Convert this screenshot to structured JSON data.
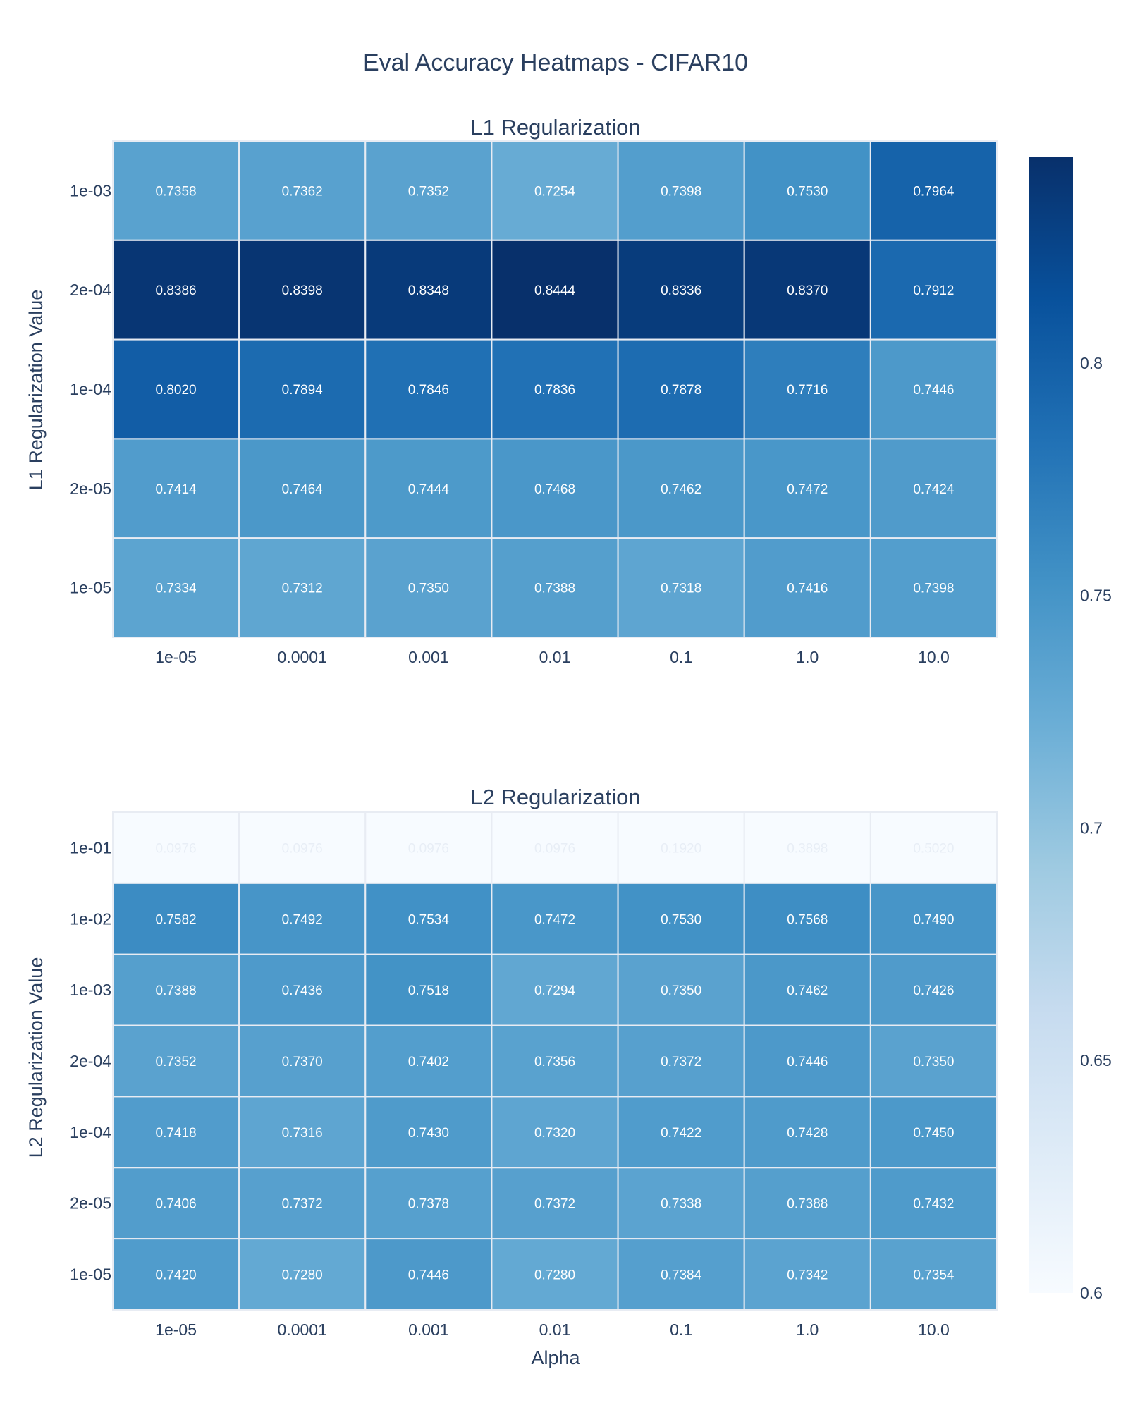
{
  "title": "Eval Accuracy Heatmaps - CIFAR10",
  "chart_data": {
    "type": "heatmap",
    "title": "Eval Accuracy Heatmaps - CIFAR10",
    "colorscale": "Blues",
    "colorbar": {
      "zmin": 0.6,
      "zmax": 0.8444,
      "ticks": [
        0.6,
        0.65,
        0.7,
        0.75,
        0.8
      ],
      "tick_labels": [
        "0.6",
        "0.65",
        "0.7",
        "0.75",
        "0.8"
      ]
    },
    "panels": [
      {
        "title": "L1 Regularization",
        "xlabel": "",
        "ylabel": "L1 Regularization Value",
        "x": [
          "1e-05",
          "0.0001",
          "0.001",
          "0.01",
          "0.1",
          "1.0",
          "10.0"
        ],
        "y": [
          "1e-03",
          "2e-04",
          "1e-04",
          "2e-05",
          "1e-05"
        ],
        "z": [
          [
            0.7358,
            0.7362,
            0.7352,
            0.7254,
            0.7398,
            0.753,
            0.7964
          ],
          [
            0.8386,
            0.8398,
            0.8348,
            0.8444,
            0.8336,
            0.837,
            0.7912
          ],
          [
            0.802,
            0.7894,
            0.7846,
            0.7836,
            0.7878,
            0.7716,
            0.7446
          ],
          [
            0.7414,
            0.7464,
            0.7444,
            0.7468,
            0.7462,
            0.7472,
            0.7424
          ],
          [
            0.7334,
            0.7312,
            0.735,
            0.7388,
            0.7318,
            0.7416,
            0.7398
          ]
        ],
        "text": [
          [
            "0.7358",
            "0.7362",
            "0.7352",
            "0.7254",
            "0.7398",
            "0.7530",
            "0.7964"
          ],
          [
            "0.8386",
            "0.8398",
            "0.8348",
            "0.8444",
            "0.8336",
            "0.8370",
            "0.7912"
          ],
          [
            "0.8020",
            "0.7894",
            "0.7846",
            "0.7836",
            "0.7878",
            "0.7716",
            "0.7446"
          ],
          [
            "0.7414",
            "0.7464",
            "0.7444",
            "0.7468",
            "0.7462",
            "0.7472",
            "0.7424"
          ],
          [
            "0.7334",
            "0.7312",
            "0.7350",
            "0.7388",
            "0.7318",
            "0.7416",
            "0.7398"
          ]
        ]
      },
      {
        "title": "L2 Regularization",
        "xlabel": "Alpha",
        "ylabel": "L2 Regularization Value",
        "x": [
          "1e-05",
          "0.0001",
          "0.001",
          "0.01",
          "0.1",
          "1.0",
          "10.0"
        ],
        "y": [
          "1e-01",
          "1e-02",
          "1e-03",
          "2e-04",
          "1e-04",
          "2e-05",
          "1e-05"
        ],
        "z": [
          [
            0.0976,
            0.0976,
            0.0976,
            0.0976,
            0.192,
            0.3898,
            0.502
          ],
          [
            0.7582,
            0.7492,
            0.7534,
            0.7472,
            0.753,
            0.7568,
            0.749
          ],
          [
            0.7388,
            0.7436,
            0.7518,
            0.7294,
            0.735,
            0.7462,
            0.7426
          ],
          [
            0.7352,
            0.737,
            0.7402,
            0.7356,
            0.7372,
            0.7446,
            0.735
          ],
          [
            0.7418,
            0.7316,
            0.743,
            0.732,
            0.7422,
            0.7428,
            0.745
          ],
          [
            0.7406,
            0.7372,
            0.7378,
            0.7372,
            0.7338,
            0.7388,
            0.7432
          ],
          [
            0.742,
            0.728,
            0.7446,
            0.728,
            0.7384,
            0.7342,
            0.7354
          ]
        ],
        "text": [
          [
            "0.0976",
            "0.0976",
            "0.0976",
            "0.0976",
            "0.1920",
            "0.3898",
            "0.5020"
          ],
          [
            "0.7582",
            "0.7492",
            "0.7534",
            "0.7472",
            "0.7530",
            "0.7568",
            "0.7490"
          ],
          [
            "0.7388",
            "0.7436",
            "0.7518",
            "0.7294",
            "0.7350",
            "0.7462",
            "0.7426"
          ],
          [
            "0.7352",
            "0.7370",
            "0.7402",
            "0.7356",
            "0.7372",
            "0.7446",
            "0.7350"
          ],
          [
            "0.7418",
            "0.7316",
            "0.7430",
            "0.7320",
            "0.7422",
            "0.7428",
            "0.7450"
          ],
          [
            "0.7406",
            "0.7372",
            "0.7378",
            "0.7372",
            "0.7338",
            "0.7388",
            "0.7432"
          ],
          [
            "0.7420",
            "0.7280",
            "0.7446",
            "0.7280",
            "0.7384",
            "0.7342",
            "0.7354"
          ]
        ]
      }
    ]
  }
}
